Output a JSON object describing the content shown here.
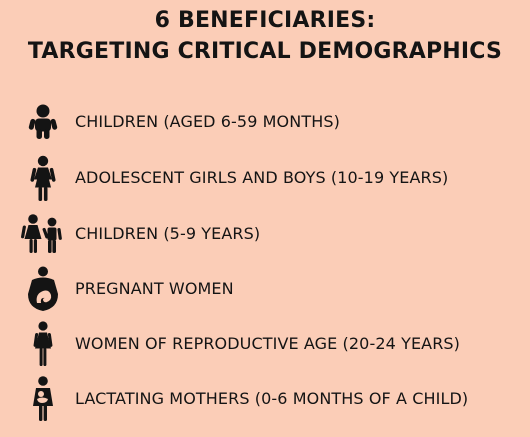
{
  "title": {
    "line1": "6 BENEFICIARIES:",
    "line2": "TARGETING CRITICAL DEMOGRAPHICS"
  },
  "beneficiaries": [
    {
      "icon": "toddler-icon",
      "label": "CHILDREN (AGED 6-59 MONTHS)"
    },
    {
      "icon": "adolescent-girl-icon",
      "label": "ADOLESCENT GIRLS AND BOYS (10-19 YEARS)"
    },
    {
      "icon": "children-pair-icon",
      "label": "CHILDREN (5-9 YEARS)"
    },
    {
      "icon": "pregnant-woman-icon",
      "label": "PREGNANT WOMEN"
    },
    {
      "icon": "woman-icon",
      "label": "WOMEN OF REPRODUCTIVE AGE (20-24 YEARS)"
    },
    {
      "icon": "lactating-mother-icon",
      "label": "LACTATING MOTHERS (0-6 MONTHS OF A CHILD)"
    }
  ],
  "colors": {
    "background": "#fbcdb7",
    "text": "#141414"
  }
}
